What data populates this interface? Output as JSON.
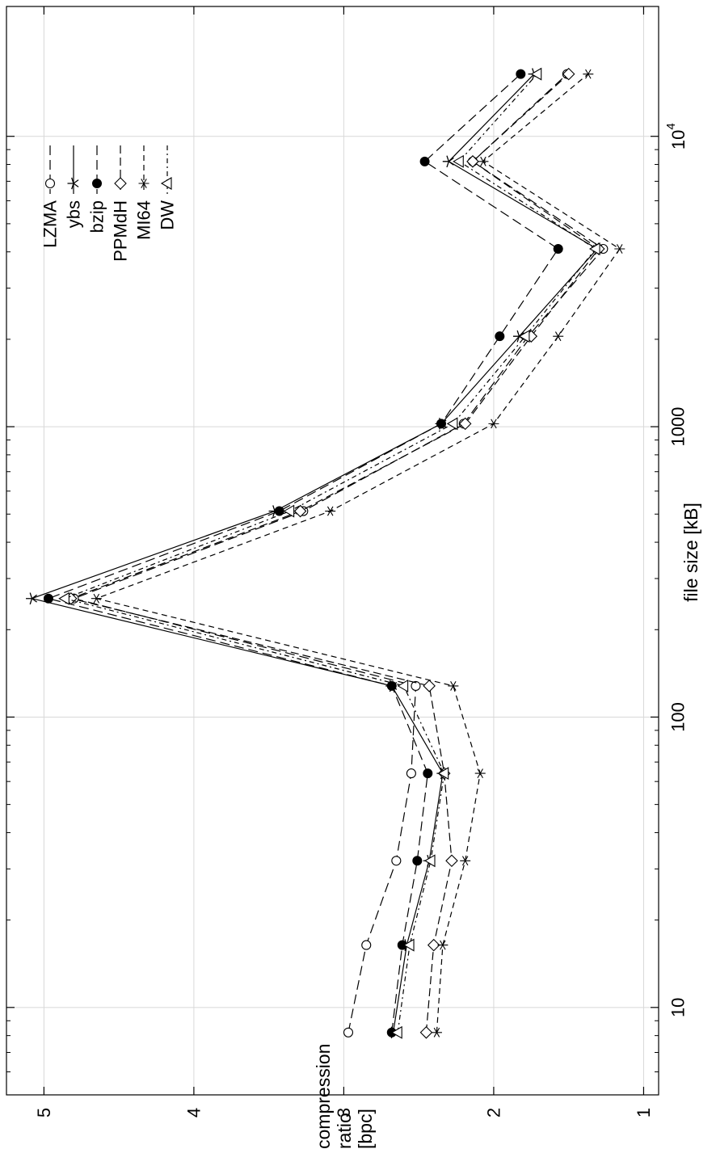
{
  "chart_data": {
    "type": "line",
    "orientation": "rotated-90-ccw",
    "title": "",
    "xlabel": "file size [kB]",
    "ylabel": "compression ratio [bpc]",
    "x_scale": "log",
    "xlim": [
      5,
      28000
    ],
    "ylim": [
      0.9,
      5.25
    ],
    "x_ticks": [
      {
        "value": 10,
        "label": "10"
      },
      {
        "value": 100,
        "label": "100"
      },
      {
        "value": 1000,
        "label": "1000"
      },
      {
        "value": 10000,
        "label": "10⁴"
      }
    ],
    "y_ticks": [
      {
        "value": 1,
        "label": "1"
      },
      {
        "value": 2,
        "label": "2"
      },
      {
        "value": 3,
        "label": "3"
      },
      {
        "value": 4,
        "label": "4"
      },
      {
        "value": 5,
        "label": "5"
      }
    ],
    "grid": true,
    "legend_position": "top-right",
    "x": [
      8.2,
      16.4,
      32,
      64,
      128,
      256,
      512,
      1024,
      2048,
      4096,
      8192,
      16384
    ],
    "series": [
      {
        "name": "LZMA",
        "marker": "circle-open",
        "dash": "long-dash",
        "values": [
          2.97,
          2.85,
          2.65,
          2.55,
          2.52,
          4.8,
          3.27,
          2.2,
          1.77,
          1.27,
          2.14,
          1.51
        ]
      },
      {
        "name": "ybs",
        "marker": "star",
        "dash": "solid",
        "values": [
          2.67,
          2.58,
          2.43,
          2.34,
          2.68,
          5.08,
          3.46,
          2.35,
          1.83,
          1.31,
          2.3,
          1.73
        ]
      },
      {
        "name": "bzip",
        "marker": "circle-filled",
        "dash": "long-dash",
        "values": [
          2.68,
          2.61,
          2.51,
          2.44,
          2.68,
          4.97,
          3.43,
          2.35,
          1.96,
          1.57,
          2.46,
          1.82
        ]
      },
      {
        "name": "PPMdH",
        "marker": "diamond-open",
        "dash": "medium-dash",
        "values": [
          2.45,
          2.4,
          2.28,
          2.33,
          2.43,
          4.82,
          3.29,
          2.19,
          1.75,
          1.3,
          2.14,
          1.5
        ]
      },
      {
        "name": "MI64",
        "marker": "asterisk",
        "dash": "short-dash",
        "values": [
          2.38,
          2.34,
          2.19,
          2.09,
          2.27,
          4.65,
          3.09,
          2.0,
          1.57,
          1.16,
          2.07,
          1.37
        ]
      },
      {
        "name": "DW",
        "marker": "triangle-open",
        "dash": "dotted-dash",
        "values": [
          2.64,
          2.56,
          2.42,
          2.33,
          2.6,
          4.86,
          3.36,
          2.27,
          1.79,
          1.32,
          2.23,
          1.71
        ]
      }
    ]
  }
}
